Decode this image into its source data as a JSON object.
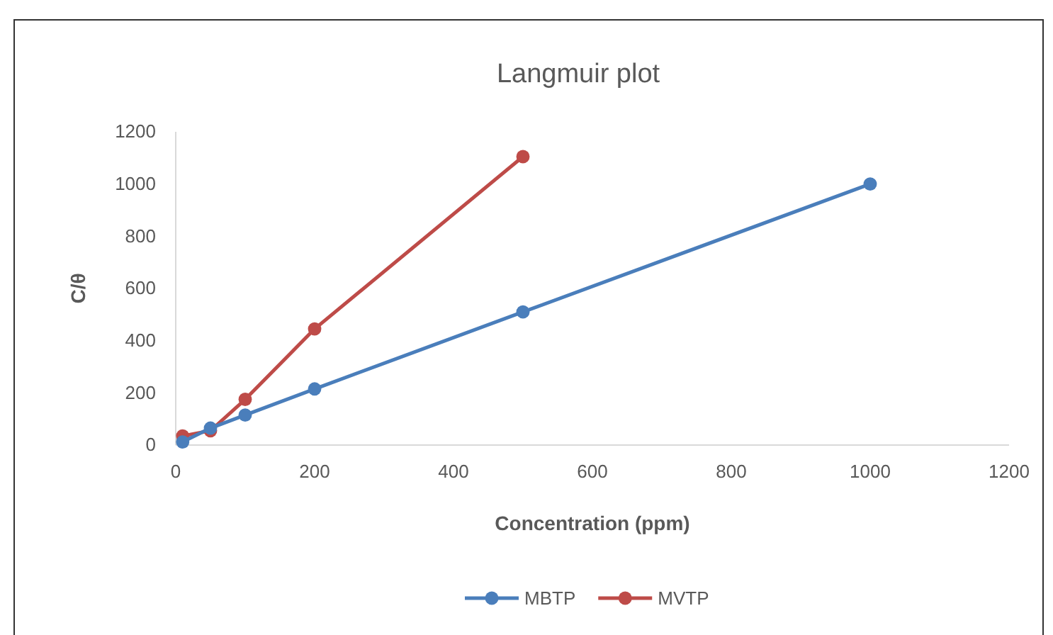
{
  "chart_data": {
    "type": "line",
    "title": "Langmuir plot",
    "xlabel": "Concentration (ppm)",
    "ylabel": "C/θ",
    "xlim": [
      0,
      1200
    ],
    "xticks": [
      0,
      200,
      400,
      600,
      800,
      1000,
      1200
    ],
    "ylim": [
      0,
      1200
    ],
    "yticks": [
      0,
      200,
      400,
      600,
      800,
      1000,
      1200
    ],
    "x": [
      10,
      50,
      100,
      200,
      500,
      1000
    ],
    "series": [
      {
        "name": "MBTP",
        "color": "#4a7ebb",
        "values": [
          12,
          65,
          115,
          215,
          510,
          1000
        ]
      },
      {
        "name": "MVTP",
        "color": "#be4b48",
        "values": [
          35,
          55,
          175,
          445,
          1105,
          null
        ]
      }
    ],
    "marker": "circle",
    "line_style": "solid",
    "grid": false,
    "legend": "bottom"
  }
}
